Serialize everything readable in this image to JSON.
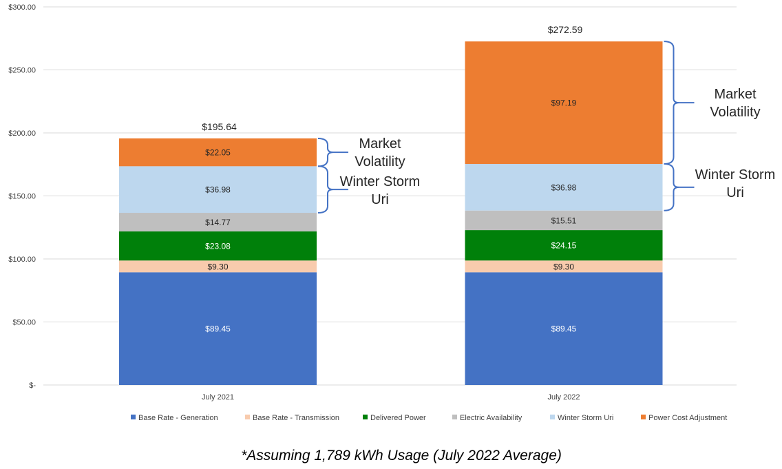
{
  "chart_data": {
    "type": "bar",
    "stacked": true,
    "categories": [
      "July 2021",
      "July 2022"
    ],
    "ylim": [
      0,
      300
    ],
    "yticks": [
      0,
      50,
      100,
      150,
      200,
      250,
      300
    ],
    "ytick_labels": [
      "$-",
      "$50.00",
      "$100.00",
      "$150.00",
      "$200.00",
      "$250.00",
      "$300.00"
    ],
    "grid": true,
    "legend_position": "bottom",
    "series": [
      {
        "name": "Base Rate - Generation",
        "color": "#4472c4",
        "label_color": "#ffffff",
        "values": [
          89.45,
          89.45
        ],
        "labels": [
          "$89.45",
          "$89.45"
        ]
      },
      {
        "name": "Base Rate - Transmission",
        "color": "#f8cbad",
        "label_color": "#262626",
        "values": [
          9.3,
          9.3
        ],
        "labels": [
          "$9.30",
          "$9.30"
        ]
      },
      {
        "name": "Delivered Power",
        "color": "#00800a",
        "label_color": "#ffffff",
        "values": [
          23.08,
          24.15
        ],
        "labels": [
          "$23.08",
          "$24.15"
        ]
      },
      {
        "name": "Electric Availability",
        "color": "#bfbfbf",
        "label_color": "#262626",
        "values": [
          14.77,
          15.51
        ],
        "labels": [
          "$14.77",
          "$15.51"
        ]
      },
      {
        "name": "Winter Storm Uri",
        "color": "#bdd7ee",
        "label_color": "#262626",
        "values": [
          36.98,
          36.98
        ],
        "labels": [
          "$36.98",
          "$36.98"
        ]
      },
      {
        "name": "Power Cost Adjustment",
        "color": "#ed7d31",
        "label_color": "#262626",
        "values": [
          22.05,
          97.19
        ],
        "labels": [
          "$22.05",
          "$97.19"
        ]
      }
    ],
    "totals": [
      "$195.64",
      "$272.59"
    ],
    "annotations": [
      {
        "bar": 0,
        "series": 5,
        "lines": [
          "Market",
          "Volatility"
        ]
      },
      {
        "bar": 0,
        "series": 4,
        "lines": [
          "Winter Storm",
          "Uri"
        ]
      },
      {
        "bar": 1,
        "series": 5,
        "lines": [
          "Market",
          "Volatility"
        ]
      },
      {
        "bar": 1,
        "series": 4,
        "lines": [
          "Winter Storm",
          "Uri"
        ]
      }
    ],
    "bracket_color": "#4472c4",
    "footnote": "*Assuming 1,789 kWh Usage (July 2022 Average)"
  }
}
